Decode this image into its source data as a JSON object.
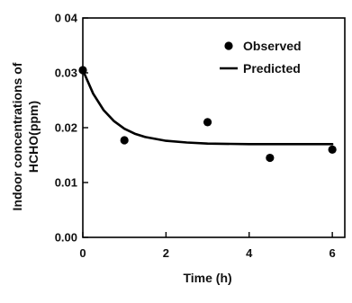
{
  "chart_data": {
    "type": "scatter",
    "title": "",
    "xlabel": "Time (h)",
    "ylabel_lines": [
      "Indoor concentrations of",
      "HCHO(ppm)"
    ],
    "xlim": [
      0,
      6.3
    ],
    "ylim": [
      0,
      0.04
    ],
    "x_ticks": [
      0,
      2,
      4,
      6
    ],
    "x_tick_labels": [
      "0",
      "2",
      "4",
      "6"
    ],
    "y_ticks": [
      0,
      0.01,
      0.02,
      0.03,
      0.04
    ],
    "y_tick_labels": [
      "0.00",
      "0.01",
      "0.02",
      "0.03",
      "0 04"
    ],
    "grid": false,
    "legend_position": "top-right",
    "series": [
      {
        "name": "Observed",
        "kind": "markers",
        "color": "#000000",
        "x": [
          0,
          1,
          3,
          4.5,
          6
        ],
        "y": [
          0.0305,
          0.0177,
          0.021,
          0.0145,
          0.016
        ]
      },
      {
        "name": "Predicted",
        "kind": "line",
        "color": "#000000",
        "x": [
          0,
          0.25,
          0.5,
          0.75,
          1,
          1.25,
          1.5,
          2,
          2.5,
          3,
          4,
          5,
          6
        ],
        "y": [
          0.0305,
          0.0262,
          0.0232,
          0.0212,
          0.0198,
          0.0189,
          0.0183,
          0.0176,
          0.0173,
          0.0171,
          0.017,
          0.017,
          0.017
        ]
      }
    ]
  }
}
